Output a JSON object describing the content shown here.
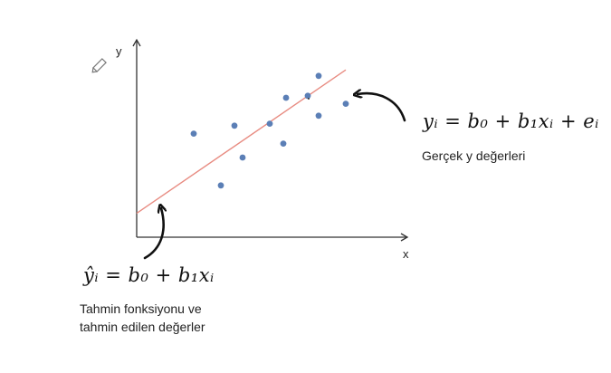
{
  "axes": {
    "x_label": "x",
    "y_label": "y"
  },
  "chart_data": {
    "type": "scatter",
    "points": [
      {
        "x": 2.1,
        "y": 5.2
      },
      {
        "x": 3.1,
        "y": 2.6
      },
      {
        "x": 3.6,
        "y": 5.6
      },
      {
        "x": 3.9,
        "y": 4.0
      },
      {
        "x": 4.9,
        "y": 5.7
      },
      {
        "x": 5.4,
        "y": 4.7
      },
      {
        "x": 5.5,
        "y": 7.0
      },
      {
        "x": 6.3,
        "y": 7.1
      },
      {
        "x": 6.7,
        "y": 6.1
      },
      {
        "x": 6.7,
        "y": 8.1
      },
      {
        "x": 7.7,
        "y": 6.7
      }
    ],
    "fit_line": {
      "x": [
        0,
        7.7
      ],
      "y": [
        1.2,
        8.4
      ]
    },
    "xlim": [
      0,
      10
    ],
    "ylim": [
      0,
      10
    ],
    "colors": {
      "points": "#5b7fb6",
      "fit_line": "#e88c82",
      "axes": "#333333",
      "arrows": "#111111"
    }
  },
  "annotations": {
    "actual_formula": "yᵢ = b₀ + b₁xᵢ + eᵢ",
    "actual_label": "Gerçek y değerleri",
    "predicted_formula": "ŷᵢ = b₀ + b₁xᵢ",
    "predicted_label_line1": "Tahmin fonksiyonu ve",
    "predicted_label_line2": "tahmin edilen değerler"
  },
  "icons": {
    "pencil": "pencil-icon"
  }
}
